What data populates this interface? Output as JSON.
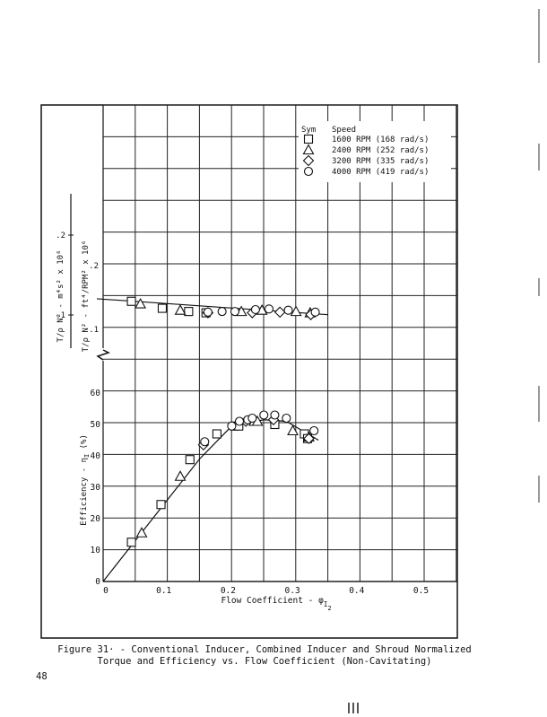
{
  "page": {
    "page_number": "48",
    "caption": {
      "line1": "Figure 31· - Conventional Inducer, Combined Inducer and Shroud Normalized",
      "line2": "Torque and Efficiency vs. Flow Coefficient (Non-Cavitating)"
    }
  },
  "legend": {
    "header_sym": "Sym",
    "header_speed": "Speed",
    "entries": [
      {
        "symbol": "square-marker",
        "label": "1600 RPM (168 rad/s)"
      },
      {
        "symbol": "triangle-marker",
        "label": "2400 RPM (252 rad/s)"
      },
      {
        "symbol": "diamond-marker",
        "label": "3200 RPM (335 rad/s)"
      },
      {
        "symbol": "circle-marker",
        "label": "4000 RPM (419 rad/s)"
      }
    ]
  },
  "axes": {
    "xlabel": "Flow Coefficient - φ",
    "xlabel_sub": "I",
    "xlabel_subsub": "2",
    "x_ticks": [
      "0",
      "0.1",
      "0.2",
      "0.3",
      "0.4",
      "0.5"
    ],
    "eff_ylabel": "Efficiency - η",
    "eff_ylabel_sub": "I",
    "eff_ylabel_unit": "(%)",
    "eff_ticks": [
      "0",
      "10",
      "20",
      "30",
      "40",
      "50",
      "60"
    ],
    "torque_ylabel_si": "T/ρ N² - m⁴s² x 10⁶",
    "torque_ylabel_en": "T/ρ N² - ft⁴/RPM² x 10⁶",
    "torque_ticks_en": [
      ".1",
      ".2"
    ],
    "torque_ticks_si": [
      ".1",
      ".2"
    ]
  },
  "chart_data": [
    {
      "type": "scatter",
      "title": "Normalized Torque vs. Flow Coefficient",
      "xlabel": "Flow Coefficient - φI2",
      "ylabel": "T/ρN² - ft⁴/RPM² x 10⁶ (secondary: m⁴s² x 10⁶)",
      "xlim": [
        0,
        0.55
      ],
      "ylim_visible": [
        0.07,
        0.35
      ],
      "grid": true,
      "legend_position": "upper right",
      "fit_line": {
        "x": [
          -0.05,
          0.35
        ],
        "y": [
          0.148,
          0.123
        ]
      },
      "series": [
        {
          "name": "1600 RPM (168 rad/s)",
          "marker": "square",
          "points": [
            [
              0.044,
              0.144
            ],
            [
              0.092,
              0.133
            ],
            [
              0.133,
              0.128
            ],
            [
              0.16,
              0.126
            ]
          ]
        },
        {
          "name": "2400 RPM (252 rad/s)",
          "marker": "triangle",
          "points": [
            [
              0.058,
              0.14
            ],
            [
              0.12,
              0.13
            ],
            [
              0.215,
              0.128
            ],
            [
              0.247,
              0.13
            ],
            [
              0.3,
              0.128
            ],
            [
              0.322,
              0.126
            ]
          ]
        },
        {
          "name": "3200 RPM (335 rad/s)",
          "marker": "diamond",
          "points": [
            [
              0.163,
              0.126
            ],
            [
              0.232,
              0.126
            ],
            [
              0.275,
              0.127
            ],
            [
              0.323,
              0.123
            ]
          ]
        },
        {
          "name": "4000 RPM (419 rad/s)",
          "marker": "circle",
          "points": [
            [
              0.163,
              0.127
            ],
            [
              0.185,
              0.128
            ],
            [
              0.205,
              0.128
            ],
            [
              0.237,
              0.131
            ],
            [
              0.258,
              0.132
            ],
            [
              0.288,
              0.13
            ],
            [
              0.33,
              0.127
            ]
          ]
        }
      ]
    },
    {
      "type": "scatter",
      "title": "Efficiency vs. Flow Coefficient",
      "xlabel": "Flow Coefficient - φI2",
      "ylabel": "Efficiency - ηI (%)",
      "xlim": [
        0,
        0.55
      ],
      "ylim": [
        0,
        60
      ],
      "grid": true,
      "fit_line": {
        "x": [
          0,
          0.05,
          0.1,
          0.15,
          0.2,
          0.25,
          0.285,
          0.31,
          0.335
        ],
        "y": [
          0,
          13,
          26,
          39,
          49.5,
          51.5,
          51,
          48,
          45
        ]
      },
      "series": [
        {
          "name": "1600 RPM (168 rad/s)",
          "marker": "square",
          "points": [
            [
              0.044,
              12.5
            ],
            [
              0.09,
              24.5
            ],
            [
              0.135,
              38.8
            ],
            [
              0.177,
              47.0
            ],
            [
              0.205,
              49.5
            ],
            [
              0.211,
              49.5
            ],
            [
              0.267,
              50.0
            ],
            [
              0.313,
              47.0
            ],
            [
              0.318,
              45.5
            ]
          ]
        },
        {
          "name": "2400 RPM (252 rad/s)",
          "marker": "triangle",
          "points": [
            [
              0.06,
              15.5
            ],
            [
              0.12,
              33.5
            ],
            [
              0.235,
              51.0
            ],
            [
              0.24,
              51.0
            ],
            [
              0.295,
              48.0
            ],
            [
              0.32,
              46.0
            ]
          ]
        },
        {
          "name": "3200 RPM (335 rad/s)",
          "marker": "diamond",
          "points": [
            [
              0.156,
              43.5
            ],
            [
              0.222,
              51.0
            ],
            [
              0.265,
              51.5
            ],
            [
              0.32,
              45.5
            ]
          ]
        },
        {
          "name": "4000 RPM (419 rad/s)",
          "marker": "circle",
          "points": [
            [
              0.158,
              44.5
            ],
            [
              0.2,
              49.5
            ],
            [
              0.212,
              51.0
            ],
            [
              0.225,
              51.5
            ],
            [
              0.232,
              52.0
            ],
            [
              0.25,
              53.0
            ],
            [
              0.267,
              53.0
            ],
            [
              0.285,
              52.0
            ],
            [
              0.328,
              48.0
            ]
          ]
        }
      ]
    }
  ]
}
